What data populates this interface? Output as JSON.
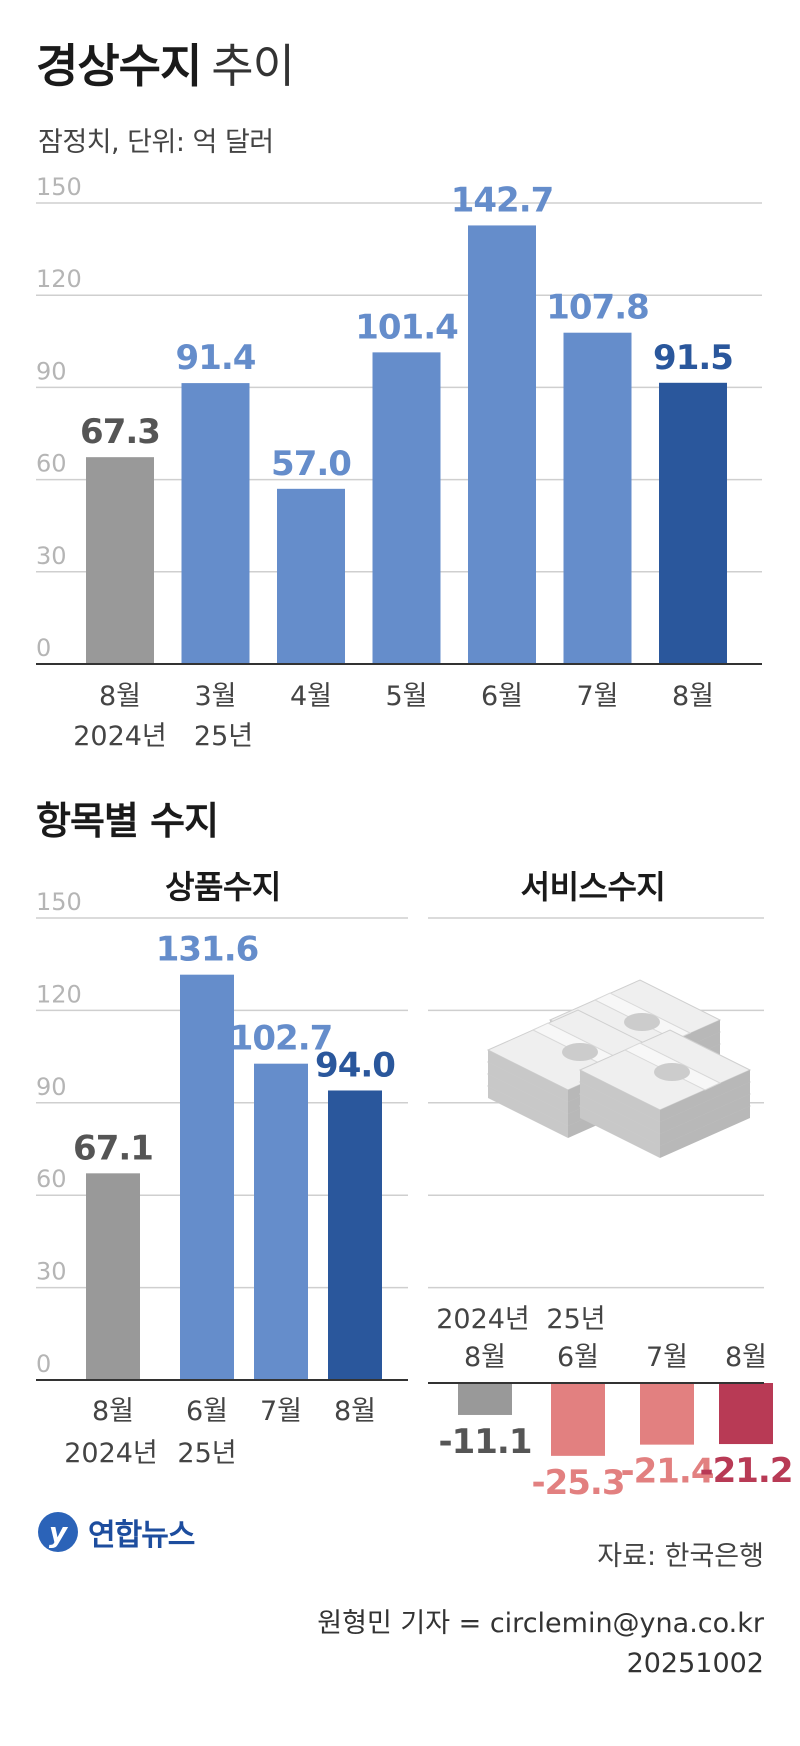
{
  "header": {
    "title_bold": "경상수지",
    "title_light": "추이",
    "subtitle": "잠정치, 단위: 억 달러"
  },
  "section": {
    "title": "항목별 수지"
  },
  "footer": {
    "logo_text": "연합뉴스",
    "source": "자료: 한국은행",
    "credit": "원형민 기자 = circlemin@yna.co.kr",
    "date": "20251002"
  },
  "chart_data": [
    {
      "type": "bar",
      "title": "경상수지 추이",
      "unit": "억 달러",
      "ylim": [
        0,
        150
      ],
      "yticks": [
        0,
        30,
        60,
        90,
        120,
        150
      ],
      "grid": true,
      "categories": [
        "8월",
        "3월",
        "4월",
        "5월",
        "6월",
        "7월",
        "8월"
      ],
      "category_sublabels": [
        "2024년",
        "25년",
        "",
        "",
        "",
        "",
        ""
      ],
      "values": [
        67.3,
        91.4,
        57.0,
        101.4,
        142.7,
        107.8,
        91.5
      ],
      "value_labels": [
        "67.3",
        "91.4",
        "57.0",
        "101.4",
        "142.7",
        "107.8",
        "91.5"
      ],
      "colors": [
        "#999999",
        "#658dcb",
        "#658dcb",
        "#658dcb",
        "#658dcb",
        "#658dcb",
        "#2a579c"
      ]
    },
    {
      "type": "bar",
      "title": "상품수지",
      "ylim": [
        0,
        150
      ],
      "yticks": [
        0,
        30,
        60,
        90,
        120,
        150
      ],
      "grid": true,
      "categories": [
        "8월",
        "6월",
        "7월",
        "8월"
      ],
      "category_sublabels": [
        "2024년",
        "25년",
        "",
        ""
      ],
      "values": [
        67.1,
        131.6,
        102.7,
        94.0
      ],
      "value_labels": [
        "67.1",
        "131.6",
        "102.7",
        "94.0"
      ],
      "colors": [
        "#999999",
        "#658dcb",
        "#658dcb",
        "#2a579c"
      ]
    },
    {
      "type": "bar",
      "title": "서비스수지",
      "grid": true,
      "categories": [
        "8월",
        "6월",
        "7월",
        "8월"
      ],
      "category_sublabels": [
        "2024년",
        "25년",
        "",
        ""
      ],
      "values": [
        -11.1,
        -25.3,
        -21.4,
        -21.2
      ],
      "value_labels": [
        "-11.1",
        "-25.3",
        "-21.4",
        "-21.2"
      ],
      "colors": [
        "#999999",
        "#e28080",
        "#e28080",
        "#b83a55"
      ]
    }
  ]
}
